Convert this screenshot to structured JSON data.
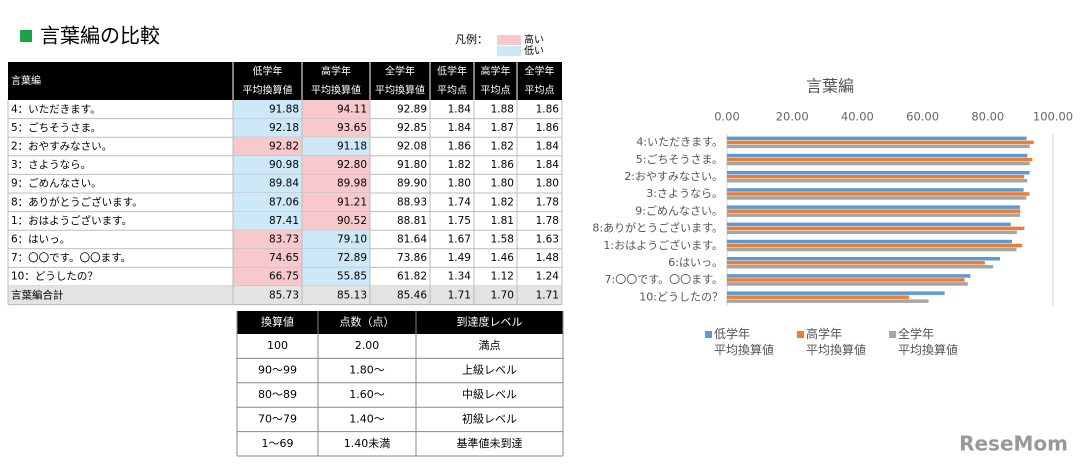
{
  "header": {
    "title": "言葉編の比較"
  },
  "legend": {
    "label": "凡例：",
    "items": [
      {
        "label": "高い",
        "color": "#f8c9cc"
      },
      {
        "label": "低い",
        "color": "#cde8f7"
      }
    ]
  },
  "table": {
    "corner": "言葉編",
    "columns": [
      [
        "低学年",
        "平均換算値"
      ],
      [
        "高学年",
        "平均換算値"
      ],
      [
        "全学年",
        "平均換算値"
      ],
      [
        "低学年",
        "平均点"
      ],
      [
        "高学年",
        "平均点"
      ],
      [
        "全学年",
        "平均点"
      ]
    ],
    "rows": [
      {
        "cells": [
          "4：いただきます。",
          "91.88",
          "94.11",
          "92.89",
          "1.84",
          "1.88",
          "1.86"
        ],
        "fills": [
          "#cde8f7",
          "#f8c9cc"
        ]
      },
      {
        "cells": [
          "5：ごちそうさま。",
          "92.18",
          "93.65",
          "92.85",
          "1.84",
          "1.87",
          "1.86"
        ],
        "fills": [
          "#cde8f7",
          "#f8c9cc"
        ]
      },
      {
        "cells": [
          "2：おやすみなさい。",
          "92.82",
          "91.18",
          "92.08",
          "1.86",
          "1.82",
          "1.84"
        ],
        "fills": [
          "#f8c9cc",
          "#cde8f7"
        ]
      },
      {
        "cells": [
          "3：さようなら。",
          "90.98",
          "92.80",
          "91.80",
          "1.82",
          "1.86",
          "1.84"
        ],
        "fills": [
          "#cde8f7",
          "#f8c9cc"
        ]
      },
      {
        "cells": [
          "9：ごめんなさい。",
          "89.84",
          "89.98",
          "89.90",
          "1.80",
          "1.80",
          "1.80"
        ],
        "fills": [
          "#cde8f7",
          "#f8c9cc"
        ]
      },
      {
        "cells": [
          "8：ありがとうございます。",
          "87.06",
          "91.21",
          "88.93",
          "1.74",
          "1.82",
          "1.78"
        ],
        "fills": [
          "#cde8f7",
          "#f8c9cc"
        ]
      },
      {
        "cells": [
          "1：おはようございます。",
          "87.41",
          "90.52",
          "88.81",
          "1.75",
          "1.81",
          "1.78"
        ],
        "fills": [
          "#cde8f7",
          "#f8c9cc"
        ]
      },
      {
        "cells": [
          "6：はいっ。",
          "83.73",
          "79.10",
          "81.64",
          "1.67",
          "1.58",
          "1.63"
        ],
        "fills": [
          "#f8c9cc",
          "#cde8f7"
        ]
      },
      {
        "cells": [
          "7：〇〇です。〇〇ます。",
          "74.65",
          "72.89",
          "73.86",
          "1.49",
          "1.46",
          "1.48"
        ],
        "fills": [
          "#f8c9cc",
          "#cde8f7"
        ]
      },
      {
        "cells": [
          "10：どうしたの？",
          "66.75",
          "55.85",
          "61.82",
          "1.34",
          "1.12",
          "1.24"
        ],
        "fills": [
          "#f8c9cc",
          "#cde8f7"
        ]
      }
    ],
    "total": [
      "言葉編合計",
      "85.73",
      "85.13",
      "85.46",
      "1.71",
      "1.70",
      "1.71"
    ]
  },
  "scale_table": {
    "header": [
      "換算値",
      "点数（点）",
      "到達度レベル"
    ],
    "rows": [
      [
        "100",
        "2.00",
        "満点"
      ],
      [
        "90～99",
        "1.80～",
        "上級レベル"
      ],
      [
        "80～89",
        "1.60～",
        "中級レベル"
      ],
      [
        "70～79",
        "1.40～",
        "初級レベル"
      ],
      [
        "1～69",
        "1.40未満",
        "基準値未到達"
      ]
    ]
  },
  "chart_data": {
    "type": "barh",
    "title": "言葉編",
    "categories": [
      "4:いただきます。",
      "5:ごちそうさま。",
      "2:おやすみなさい。",
      "3:さようなら。",
      "9:ごめんなさい。",
      "8:ありがとうございます。",
      "1:おはようございます。",
      "6:はいっ。",
      "7:〇〇です。〇〇ます。",
      "10:どうしたの？"
    ],
    "series": [
      {
        "name": "低学年\n平均換算値",
        "color": "#5b9bd5",
        "values": [
          91.88,
          92.18,
          92.82,
          90.98,
          89.84,
          87.06,
          87.41,
          83.73,
          74.65,
          66.75
        ]
      },
      {
        "name": "高学年\n平均換算値",
        "color": "#ed7d31",
        "values": [
          94.11,
          93.65,
          91.18,
          92.8,
          89.98,
          91.21,
          90.52,
          79.1,
          72.89,
          55.85
        ]
      },
      {
        "name": "全学年\n平均換算値",
        "color": "#a5a5a5",
        "values": [
          92.89,
          92.85,
          92.08,
          91.8,
          89.9,
          88.93,
          88.81,
          81.64,
          73.86,
          61.82
        ]
      }
    ],
    "xlim": [
      0,
      100
    ],
    "xticks": [
      {
        "value": 0,
        "label": "0.00"
      },
      {
        "value": 20,
        "label": "20.00"
      },
      {
        "value": 40,
        "label": "40.00"
      },
      {
        "value": 60,
        "label": "60.00"
      },
      {
        "value": 80,
        "label": "80.00"
      },
      {
        "value": 100,
        "label": "100.00"
      }
    ]
  },
  "watermark": "ReseMom"
}
